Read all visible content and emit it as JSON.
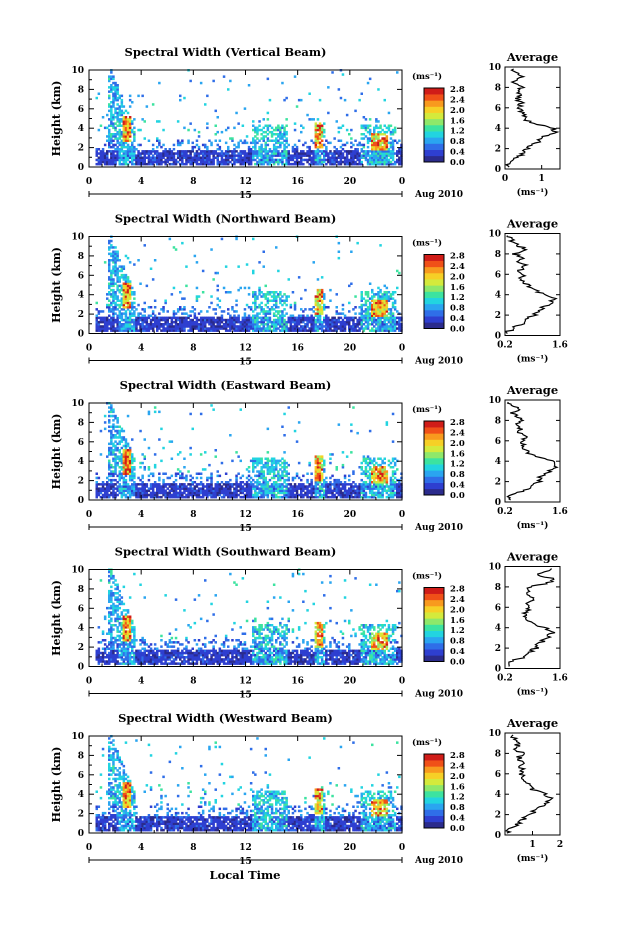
{
  "colorbar_unit": "(ms⁻¹)",
  "colorbar_ticks": [
    "0.0",
    "0.4",
    "0.8",
    "1.2",
    "1.6",
    "2.0",
    "2.4",
    "2.8"
  ],
  "colorbar_colors": [
    "#2b2b8c",
    "#2e3fd0",
    "#2f6ee8",
    "#2aa5f0",
    "#22d4e0",
    "#3ce3a0",
    "#8ee86a",
    "#d4ea3c",
    "#f6d026",
    "#f89a1e",
    "#f05018",
    "#d01c18"
  ],
  "date_label": "Aug 2010",
  "day_label": "15",
  "xlabel": "Local Time",
  "chart_data": [
    {
      "type": "heatmap",
      "title": "Spectral Width (Vertical Beam)",
      "ylabel": "Height (km)",
      "x_ticks": [
        "0",
        "4",
        "8",
        "12",
        "16",
        "20",
        "0"
      ],
      "xlim": [
        0,
        24
      ],
      "y_ticks": [
        "0",
        "2",
        "4",
        "6",
        "8",
        "10"
      ],
      "ylim": [
        0,
        10
      ],
      "zlim": [
        0.0,
        2.8
      ],
      "avg_panel": {
        "type": "line",
        "title": "Average",
        "xlabel": "(ms⁻¹)",
        "ylabel": "",
        "x_ticks": [
          "0",
          "1"
        ],
        "xlim": [
          0,
          1.5
        ],
        "y_ticks": [
          "0",
          "2",
          "4",
          "6",
          "8",
          "10"
        ],
        "ylim": [
          0,
          10
        ],
        "height": [
          0.4,
          0.8,
          1.2,
          1.6,
          2.0,
          2.4,
          2.8,
          3.2,
          3.6,
          4.0,
          4.4,
          4.8,
          5.2,
          5.6,
          6.0,
          6.4,
          6.8,
          7.2,
          7.6,
          8.0,
          8.4,
          8.8,
          9.2,
          9.6
        ],
        "value": [
          0.05,
          0.25,
          0.35,
          0.55,
          0.6,
          0.75,
          0.95,
          1.1,
          1.4,
          1.3,
          0.85,
          0.6,
          0.5,
          0.45,
          0.4,
          0.45,
          0.35,
          0.4,
          0.3,
          0.45,
          0.2,
          0.3,
          0.5,
          0.15
        ]
      }
    },
    {
      "type": "heatmap",
      "title": "Spectral Width (Northward Beam)",
      "ylabel": "Height (km)",
      "x_ticks": [
        "0",
        "4",
        "8",
        "12",
        "16",
        "20",
        "0"
      ],
      "xlim": [
        0,
        24
      ],
      "y_ticks": [
        "0",
        "2",
        "4",
        "6",
        "8",
        "10"
      ],
      "ylim": [
        0,
        10
      ],
      "zlim": [
        0.0,
        2.8
      ],
      "avg_panel": {
        "type": "line",
        "title": "Average",
        "xlabel": "(ms⁻¹)",
        "ylabel": "",
        "x_ticks": [
          "0.2",
          "1.6"
        ],
        "xlim": [
          0.2,
          1.6
        ],
        "y_ticks": [
          "0",
          "2",
          "4",
          "6",
          "8",
          "10"
        ],
        "ylim": [
          0,
          10
        ],
        "height": [
          0.4,
          0.8,
          1.2,
          1.6,
          2.0,
          2.4,
          2.8,
          3.2,
          3.6,
          4.0,
          4.4,
          4.8,
          5.2,
          5.6,
          6.0,
          6.4,
          6.8,
          7.2,
          7.6,
          8.0,
          8.4,
          8.8,
          9.2,
          9.6
        ],
        "value": [
          0.3,
          0.4,
          0.7,
          0.75,
          0.95,
          1.0,
          1.2,
          1.35,
          1.5,
          1.3,
          0.95,
          0.85,
          0.7,
          0.6,
          0.65,
          0.55,
          0.75,
          0.5,
          0.7,
          0.45,
          0.8,
          0.55,
          0.4,
          0.3
        ]
      }
    },
    {
      "type": "heatmap",
      "title": "Spectral Width (Eastward Beam)",
      "ylabel": "Height (km)",
      "x_ticks": [
        "0",
        "4",
        "8",
        "12",
        "16",
        "20",
        "0"
      ],
      "xlim": [
        0,
        24
      ],
      "y_ticks": [
        "0",
        "2",
        "4",
        "6",
        "8",
        "10"
      ],
      "ylim": [
        0,
        10
      ],
      "zlim": [
        0.0,
        2.8
      ],
      "avg_panel": {
        "type": "line",
        "title": "Average",
        "xlabel": "(ms⁻¹)",
        "ylabel": "",
        "x_ticks": [
          "0.2",
          "1.6"
        ],
        "xlim": [
          0.2,
          1.6
        ],
        "y_ticks": [
          "0",
          "2",
          "4",
          "6",
          "8",
          "10"
        ],
        "ylim": [
          0,
          10
        ],
        "height": [
          0.4,
          0.8,
          1.2,
          1.6,
          2.0,
          2.4,
          2.8,
          3.2,
          3.6,
          4.0,
          4.4,
          4.8,
          5.2,
          5.6,
          6.0,
          6.4,
          6.8,
          7.2,
          7.6,
          8.0,
          8.4,
          8.8,
          9.2,
          9.6
        ],
        "value": [
          0.3,
          0.45,
          0.75,
          0.85,
          1.05,
          1.1,
          1.25,
          1.4,
          1.55,
          1.45,
          1.0,
          0.8,
          0.7,
          0.65,
          0.6,
          0.7,
          0.55,
          0.6,
          0.5,
          0.65,
          0.45,
          0.4,
          0.55,
          0.35
        ]
      }
    },
    {
      "type": "heatmap",
      "title": "Spectral Width (Southward Beam)",
      "ylabel": "Height (km)",
      "x_ticks": [
        "0",
        "4",
        "8",
        "12",
        "16",
        "20",
        "0"
      ],
      "xlim": [
        0,
        24
      ],
      "y_ticks": [
        "0",
        "2",
        "4",
        "6",
        "8",
        "10"
      ],
      "ylim": [
        0,
        10
      ],
      "zlim": [
        0.0,
        2.8
      ],
      "avg_panel": {
        "type": "line",
        "title": "Average",
        "xlabel": "(ms⁻¹)",
        "ylabel": "",
        "x_ticks": [
          "0.2",
          "1.6"
        ],
        "xlim": [
          0.2,
          1.6
        ],
        "y_ticks": [
          "0",
          "2",
          "4",
          "6",
          "8",
          "10"
        ],
        "ylim": [
          0,
          10
        ],
        "height": [
          0.4,
          0.8,
          1.2,
          1.6,
          2.0,
          2.4,
          2.8,
          3.2,
          3.6,
          4.0,
          4.4,
          4.8,
          5.2,
          5.6,
          6.0,
          6.4,
          6.8,
          7.2,
          7.6,
          8.0,
          8.4,
          8.8,
          9.2,
          9.6
        ],
        "value": [
          0.3,
          0.4,
          0.75,
          0.8,
          1.0,
          1.05,
          1.2,
          1.3,
          1.45,
          1.2,
          0.95,
          0.8,
          0.75,
          0.7,
          0.9,
          0.75,
          0.95,
          0.7,
          0.85,
          0.8,
          1.3,
          1.5,
          0.9,
          1.4
        ]
      }
    },
    {
      "type": "heatmap",
      "title": "Spectral Width (Westward Beam)",
      "ylabel": "Height (km)",
      "x_ticks": [
        "0",
        "4",
        "8",
        "12",
        "16",
        "20",
        "0"
      ],
      "xlim": [
        0,
        24
      ],
      "y_ticks": [
        "0",
        "2",
        "4",
        "6",
        "8",
        "10"
      ],
      "ylim": [
        0,
        10
      ],
      "zlim": [
        0.0,
        2.8
      ],
      "avg_panel": {
        "type": "line",
        "title": "Average",
        "xlabel": "(ms⁻¹)",
        "ylabel": "",
        "x_ticks": [
          "1",
          "2"
        ],
        "xlim": [
          0,
          2.0
        ],
        "y_ticks": [
          "0",
          "2",
          "4",
          "6",
          "8",
          "10"
        ],
        "ylim": [
          0,
          10
        ],
        "height": [
          0.4,
          0.8,
          1.2,
          1.6,
          2.0,
          2.4,
          2.8,
          3.2,
          3.6,
          4.0,
          4.4,
          4.8,
          5.2,
          5.6,
          6.0,
          6.4,
          6.8,
          7.2,
          7.6,
          8.0,
          8.4,
          8.8,
          9.2,
          9.6
        ],
        "value": [
          0.1,
          0.25,
          0.55,
          0.7,
          0.95,
          1.1,
          1.3,
          1.55,
          1.7,
          1.5,
          1.05,
          0.9,
          0.75,
          0.65,
          0.6,
          0.7,
          0.55,
          0.6,
          0.5,
          0.65,
          0.4,
          0.45,
          0.55,
          0.3
        ]
      }
    }
  ]
}
